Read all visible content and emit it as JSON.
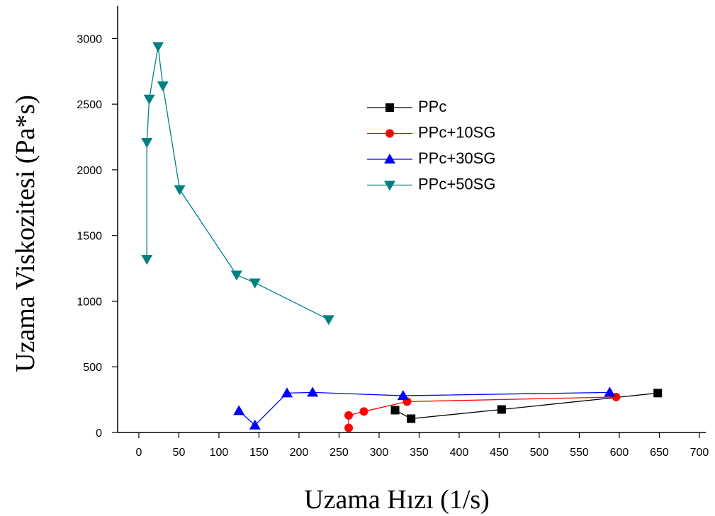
{
  "chart_data": {
    "type": "line",
    "xlabel": "Uzama Hızı (1/s)",
    "ylabel": "Uzama Viskozitesi (Pa*s)",
    "xlim": [
      -26.5,
      708
    ],
    "ylim": [
      0,
      3250
    ],
    "xticks": [
      0,
      50,
      100,
      150,
      200,
      250,
      300,
      350,
      400,
      450,
      500,
      550,
      600,
      650,
      700
    ],
    "yticks": [
      0,
      500,
      1000,
      1500,
      2000,
      2500,
      3000
    ],
    "series": [
      {
        "name": "PPc",
        "color": "#000000",
        "marker": "square",
        "x": [
          320,
          340,
          453,
          648
        ],
        "values": [
          170,
          105,
          175,
          300
        ]
      },
      {
        "name": "PPc+10SG",
        "color": "#ff0000",
        "marker": "circle",
        "x": [
          262,
          262,
          281,
          335,
          596
        ],
        "values": [
          35,
          130,
          160,
          235,
          270
        ]
      },
      {
        "name": "PPc+30SG",
        "color": "#0000ff",
        "marker": "triangle-up",
        "x": [
          125,
          145,
          185,
          217,
          330,
          588
        ],
        "values": [
          165,
          55,
          300,
          305,
          280,
          305
        ]
      },
      {
        "name": "PPc+50SG",
        "color": "#008080",
        "marker": "triangle-down",
        "x": [
          10,
          10,
          13,
          24,
          30,
          51,
          122,
          145,
          237
        ],
        "values": [
          1320,
          2210,
          2540,
          2940,
          2640,
          1850,
          1200,
          1140,
          860
        ]
      }
    ]
  }
}
